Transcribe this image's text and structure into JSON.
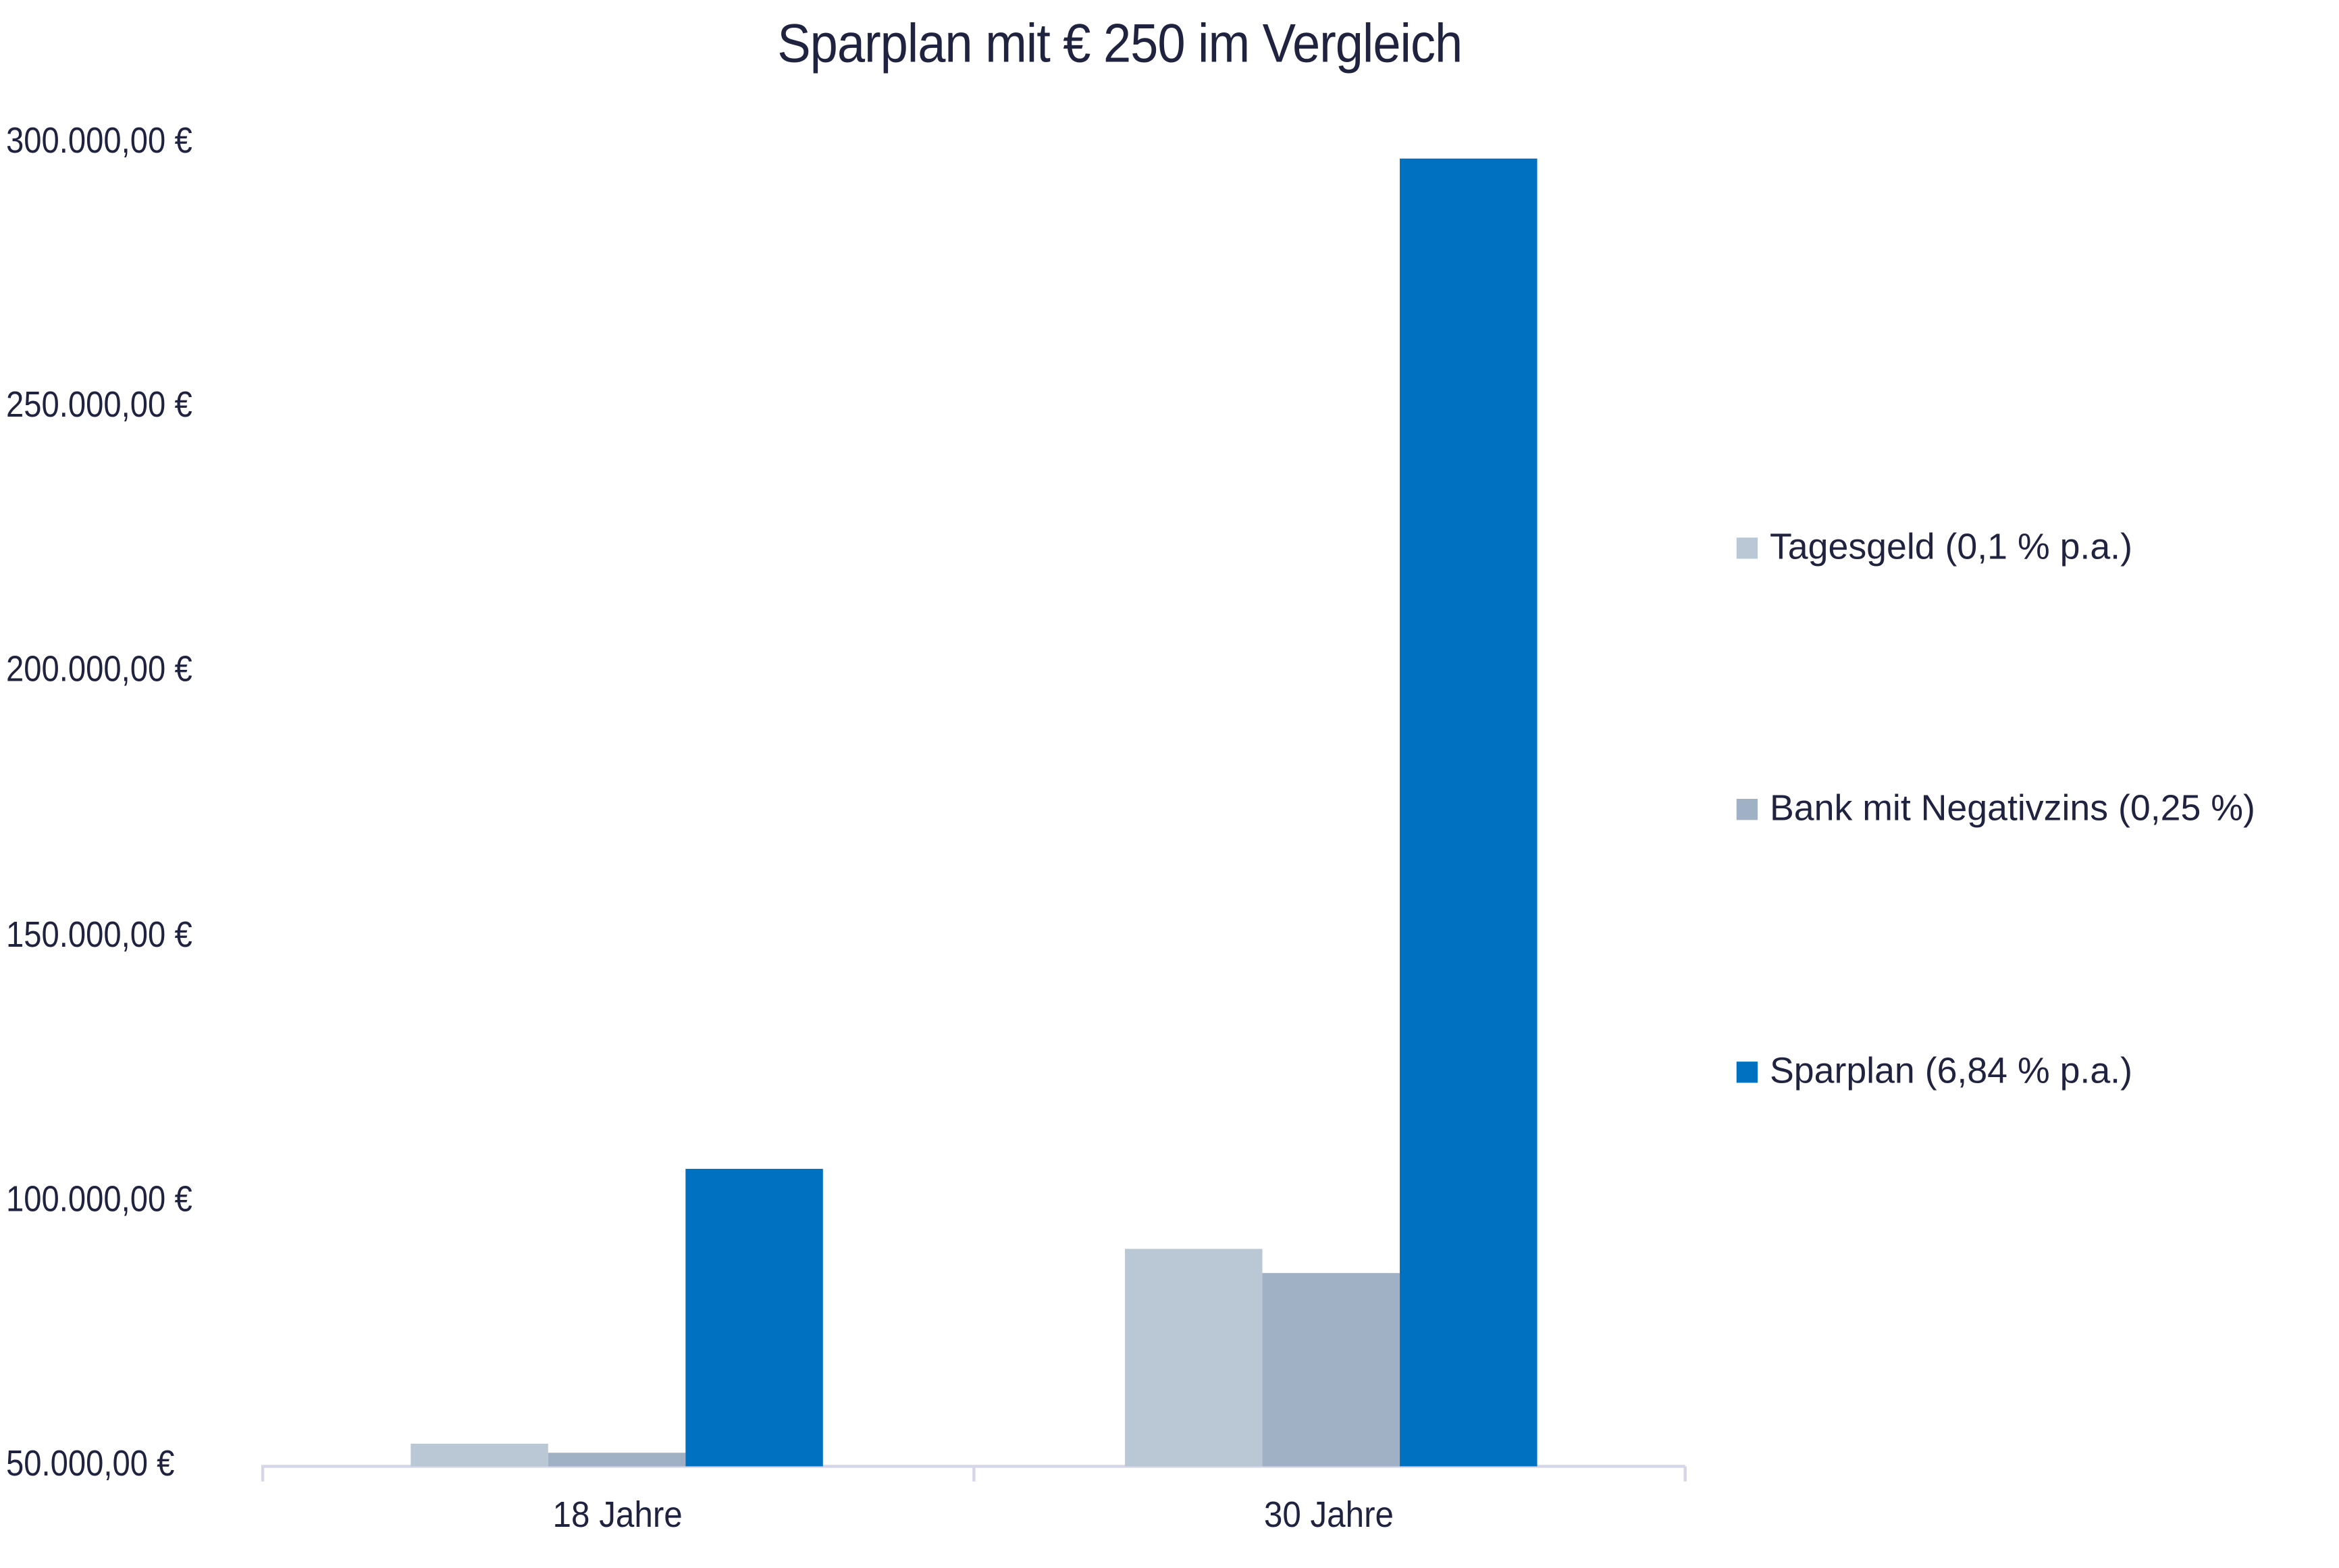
{
  "chart_data": {
    "type": "bar",
    "title": "Sparplan mit € 250 im Vergleich",
    "xlabel": "",
    "ylabel": "",
    "categories": [
      "18 Jahre",
      "30 Jahre"
    ],
    "series": [
      {
        "name": "Tagesgeld (0,1 % p.a.)",
        "color": "#bac8d5",
        "values": [
          54300,
          91100
        ]
      },
      {
        "name": "Bank mit Negativzins (0,25 %)",
        "color": "#a0b1c6",
        "values": [
          52600,
          86500
        ]
      },
      {
        "name": "Sparplan (6,84 % p.a.)",
        "color": "#0071c1",
        "values": [
          106200,
          297200
        ]
      }
    ],
    "ylim": [
      50000,
      300000
    ],
    "yticks": [
      "50.000,00 €",
      "100.000,00 €",
      "150.000,00 €",
      "200.000,00 €",
      "250.000,00 €",
      "300.000,00 €"
    ],
    "ytick_values": [
      50000,
      100000,
      150000,
      200000,
      250000,
      300000
    ],
    "grid": false,
    "legend_position": "right"
  }
}
